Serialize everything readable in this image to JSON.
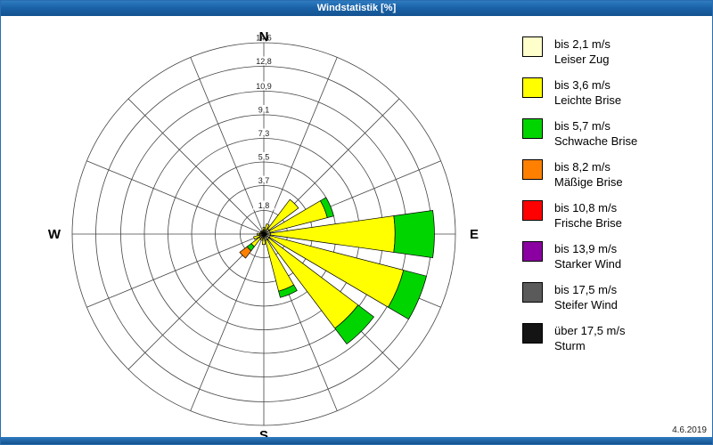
{
  "window": {
    "title": "Windstatistik [%]"
  },
  "footer": {
    "date": "4.6.2019"
  },
  "chart_data": {
    "type": "windrose",
    "title": "Windstatistik [%]",
    "units": "%",
    "max_value": 14.6,
    "ring_ticks": [
      "1,8",
      "3,7",
      "5,5",
      "7,3",
      "9,1",
      "10,9",
      "12,8",
      "14,6"
    ],
    "ring_values": [
      1.8,
      3.7,
      5.5,
      7.3,
      9.1,
      10.9,
      12.8,
      14.6
    ],
    "compass": {
      "n": "N",
      "e": "E",
      "s": "S",
      "w": "W"
    },
    "grid": true,
    "legend_position": "right",
    "directions": [
      "N",
      "NNE",
      "NE",
      "ENE",
      "E",
      "ESE",
      "SE",
      "SSE",
      "S",
      "SSW",
      "SW",
      "WSW",
      "W",
      "WNW",
      "NW",
      "NNW"
    ],
    "classes": [
      {
        "label_speed": "bis 2,1 m/s",
        "label_name": "Leiser Zug",
        "color": "#FFFFCC"
      },
      {
        "label_speed": "bis 3,6 m/s",
        "label_name": "Leichte Brise",
        "color": "#FFFF00"
      },
      {
        "label_speed": "bis 5,7 m/s",
        "label_name": "Schwache Brise",
        "color": "#00D500"
      },
      {
        "label_speed": "bis 8,2 m/s",
        "label_name": "Mäßige Brise",
        "color": "#FF8000"
      },
      {
        "label_speed": "bis 10,8 m/s",
        "label_name": "Frische Brise",
        "color": "#FF0000"
      },
      {
        "label_speed": "bis 13,9 m/s",
        "label_name": "Starker Wind",
        "color": "#8A00A0"
      },
      {
        "label_speed": "bis 17,5 m/s",
        "label_name": "Steifer Wind",
        "color": "#5A5A5A"
      },
      {
        "label_speed": "über 17,5 m/s",
        "label_name": "Sturm",
        "color": "#141414"
      }
    ],
    "series": [
      {
        "name": "bis 2,1 m/s",
        "values": [
          0.3,
          0.3,
          0.5,
          0.5,
          0.5,
          0.5,
          0.5,
          0.5,
          0.3,
          0.3,
          0.4,
          0.3,
          0.3,
          0.2,
          0.2,
          0.2
        ]
      },
      {
        "name": "bis 3,6 m/s",
        "values": [
          0.2,
          0.5,
          2.8,
          4.5,
          9.5,
          10.5,
          8.5,
          4.0,
          0.5,
          0.2,
          0.8,
          0.5,
          0.2,
          0.1,
          0.1,
          0.1
        ]
      },
      {
        "name": "bis 5,7 m/s",
        "values": [
          0,
          0,
          0,
          0.5,
          3.0,
          1.8,
          1.5,
          0.5,
          0,
          0,
          0.4,
          0,
          0,
          0,
          0,
          0
        ]
      },
      {
        "name": "bis 8,2 m/s",
        "values": [
          0,
          0,
          0,
          0,
          0,
          0,
          0,
          0,
          0,
          0,
          0.7,
          0,
          0,
          0,
          0,
          0
        ]
      },
      {
        "name": "bis 10,8 m/s",
        "values": [
          0,
          0,
          0,
          0,
          0,
          0,
          0,
          0,
          0,
          0,
          0,
          0,
          0,
          0,
          0,
          0
        ]
      },
      {
        "name": "bis 13,9 m/s",
        "values": [
          0,
          0,
          0,
          0,
          0,
          0,
          0,
          0,
          0,
          0,
          0,
          0,
          0,
          0,
          0,
          0
        ]
      },
      {
        "name": "bis 17,5 m/s",
        "values": [
          0,
          0,
          0,
          0,
          0,
          0,
          0,
          0,
          0,
          0,
          0,
          0,
          0,
          0,
          0,
          0
        ]
      },
      {
        "name": "über 17,5 m/s",
        "values": [
          0,
          0,
          0,
          0,
          0,
          0,
          0,
          0,
          0,
          0,
          0,
          0,
          0,
          0,
          0,
          0
        ]
      }
    ]
  }
}
